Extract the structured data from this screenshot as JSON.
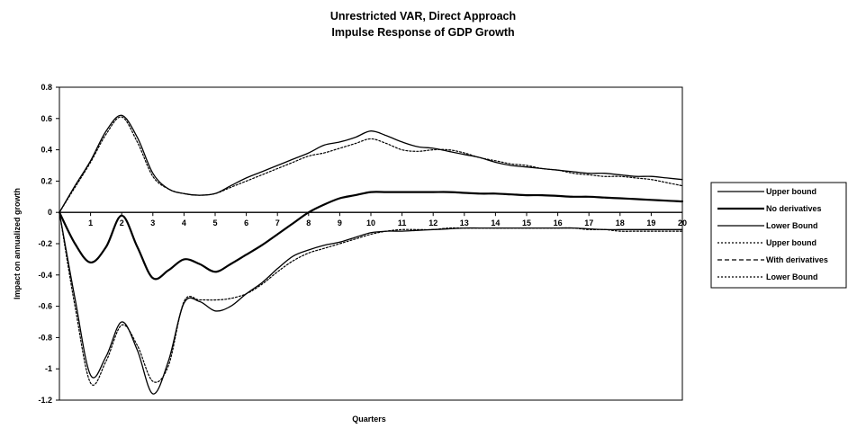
{
  "chart_data": {
    "type": "line",
    "title": [
      "Unrestricted VAR, Direct Approach",
      "Impulse Response of GDP Growth"
    ],
    "xlabel": "Quarters",
    "ylabel": "Impact on annualized growth",
    "xlim": [
      0,
      20
    ],
    "ylim": [
      -1.2,
      0.8
    ],
    "x_ticks": [
      "0",
      "1",
      "2",
      "3",
      "4",
      "5",
      "6",
      "7",
      "8",
      "9",
      "10",
      "11",
      "12",
      "13",
      "14",
      "15",
      "16",
      "17",
      "18",
      "19",
      "20"
    ],
    "y_ticks": [
      "0.8",
      "0.6",
      "0.4",
      "0.2",
      "0",
      "-0.2",
      "-0.4",
      "-0.6",
      "-0.8",
      "-1",
      "-1.2"
    ],
    "y_tick_values": [
      0.8,
      0.6,
      0.4,
      0.2,
      0,
      -0.2,
      -0.4,
      -0.6,
      -0.8,
      -1,
      -1.2
    ],
    "grid": false,
    "legend_position": "right",
    "x": [
      0,
      0.5,
      1,
      1.5,
      2,
      2.5,
      3,
      3.5,
      4,
      4.5,
      5,
      5.5,
      6,
      6.5,
      7,
      7.5,
      8,
      8.5,
      9,
      9.5,
      10,
      10.5,
      11,
      11.5,
      12,
      12.5,
      13,
      13.5,
      14,
      14.5,
      15,
      15.5,
      16,
      16.5,
      17,
      17.5,
      18,
      18.5,
      19,
      19.5,
      20
    ],
    "series": [
      {
        "name": "Upper bound",
        "style": "solid",
        "width": 1.3,
        "values": [
          0,
          0.17,
          0.33,
          0.52,
          0.62,
          0.48,
          0.25,
          0.15,
          0.12,
          0.11,
          0.12,
          0.17,
          0.22,
          0.26,
          0.3,
          0.34,
          0.38,
          0.43,
          0.45,
          0.48,
          0.52,
          0.49,
          0.45,
          0.42,
          0.41,
          0.39,
          0.37,
          0.35,
          0.32,
          0.3,
          0.29,
          0.28,
          0.27,
          0.26,
          0.25,
          0.25,
          0.24,
          0.23,
          0.23,
          0.22,
          0.21
        ]
      },
      {
        "name": "No derivatives",
        "style": "solid",
        "width": 2.2,
        "values": [
          0,
          -0.2,
          -0.32,
          -0.22,
          -0.02,
          -0.22,
          -0.42,
          -0.37,
          -0.3,
          -0.33,
          -0.38,
          -0.33,
          -0.27,
          -0.21,
          -0.14,
          -0.07,
          0,
          0.05,
          0.09,
          0.11,
          0.13,
          0.13,
          0.13,
          0.13,
          0.13,
          0.13,
          0.125,
          0.12,
          0.12,
          0.115,
          0.11,
          0.11,
          0.105,
          0.1,
          0.1,
          0.095,
          0.09,
          0.085,
          0.08,
          0.075,
          0.07
        ]
      },
      {
        "name": "Lower Bound",
        "style": "solid",
        "width": 1.3,
        "values": [
          0,
          -0.55,
          -1.04,
          -0.92,
          -0.7,
          -0.88,
          -1.16,
          -0.95,
          -0.58,
          -0.57,
          -0.63,
          -0.6,
          -0.52,
          -0.45,
          -0.36,
          -0.28,
          -0.24,
          -0.21,
          -0.19,
          -0.16,
          -0.13,
          -0.12,
          -0.12,
          -0.115,
          -0.11,
          -0.105,
          -0.1,
          -0.1,
          -0.1,
          -0.1,
          -0.1,
          -0.1,
          -0.1,
          -0.1,
          -0.105,
          -0.11,
          -0.11,
          -0.11,
          -0.11,
          -0.11,
          -0.11
        ]
      },
      {
        "name": "Upper bound",
        "style": "dotted",
        "width": 1.2,
        "values": [
          0,
          0.16,
          0.32,
          0.5,
          0.61,
          0.45,
          0.23,
          0.15,
          0.12,
          0.11,
          0.12,
          0.16,
          0.2,
          0.24,
          0.28,
          0.32,
          0.36,
          0.38,
          0.41,
          0.44,
          0.47,
          0.44,
          0.4,
          0.39,
          0.4,
          0.4,
          0.38,
          0.35,
          0.33,
          0.31,
          0.3,
          0.28,
          0.27,
          0.25,
          0.24,
          0.23,
          0.23,
          0.22,
          0.21,
          0.19,
          0.17
        ]
      },
      {
        "name": "With derivatives",
        "style": "dashed",
        "width": 1.2,
        "values": [
          0,
          -0.2,
          -0.32,
          -0.22,
          -0.02,
          -0.22,
          -0.42,
          -0.37,
          -0.3,
          -0.33,
          -0.38,
          -0.33,
          -0.27,
          -0.21,
          -0.14,
          -0.07,
          0,
          0.05,
          0.09,
          0.11,
          0.13,
          0.13,
          0.13,
          0.13,
          0.13,
          0.13,
          0.125,
          0.12,
          0.12,
          0.115,
          0.11,
          0.11,
          0.105,
          0.1,
          0.1,
          0.095,
          0.09,
          0.085,
          0.08,
          0.075,
          0.07
        ]
      },
      {
        "name": "Lower Bound",
        "style": "dotted",
        "width": 1.2,
        "values": [
          0,
          -0.6,
          -1.09,
          -0.95,
          -0.72,
          -0.85,
          -1.08,
          -0.98,
          -0.57,
          -0.56,
          -0.56,
          -0.55,
          -0.52,
          -0.46,
          -0.38,
          -0.31,
          -0.26,
          -0.23,
          -0.2,
          -0.17,
          -0.14,
          -0.12,
          -0.11,
          -0.11,
          -0.11,
          -0.1,
          -0.1,
          -0.1,
          -0.1,
          -0.1,
          -0.1,
          -0.1,
          -0.1,
          -0.1,
          -0.11,
          -0.11,
          -0.12,
          -0.12,
          -0.12,
          -0.12,
          -0.12
        ]
      }
    ]
  }
}
